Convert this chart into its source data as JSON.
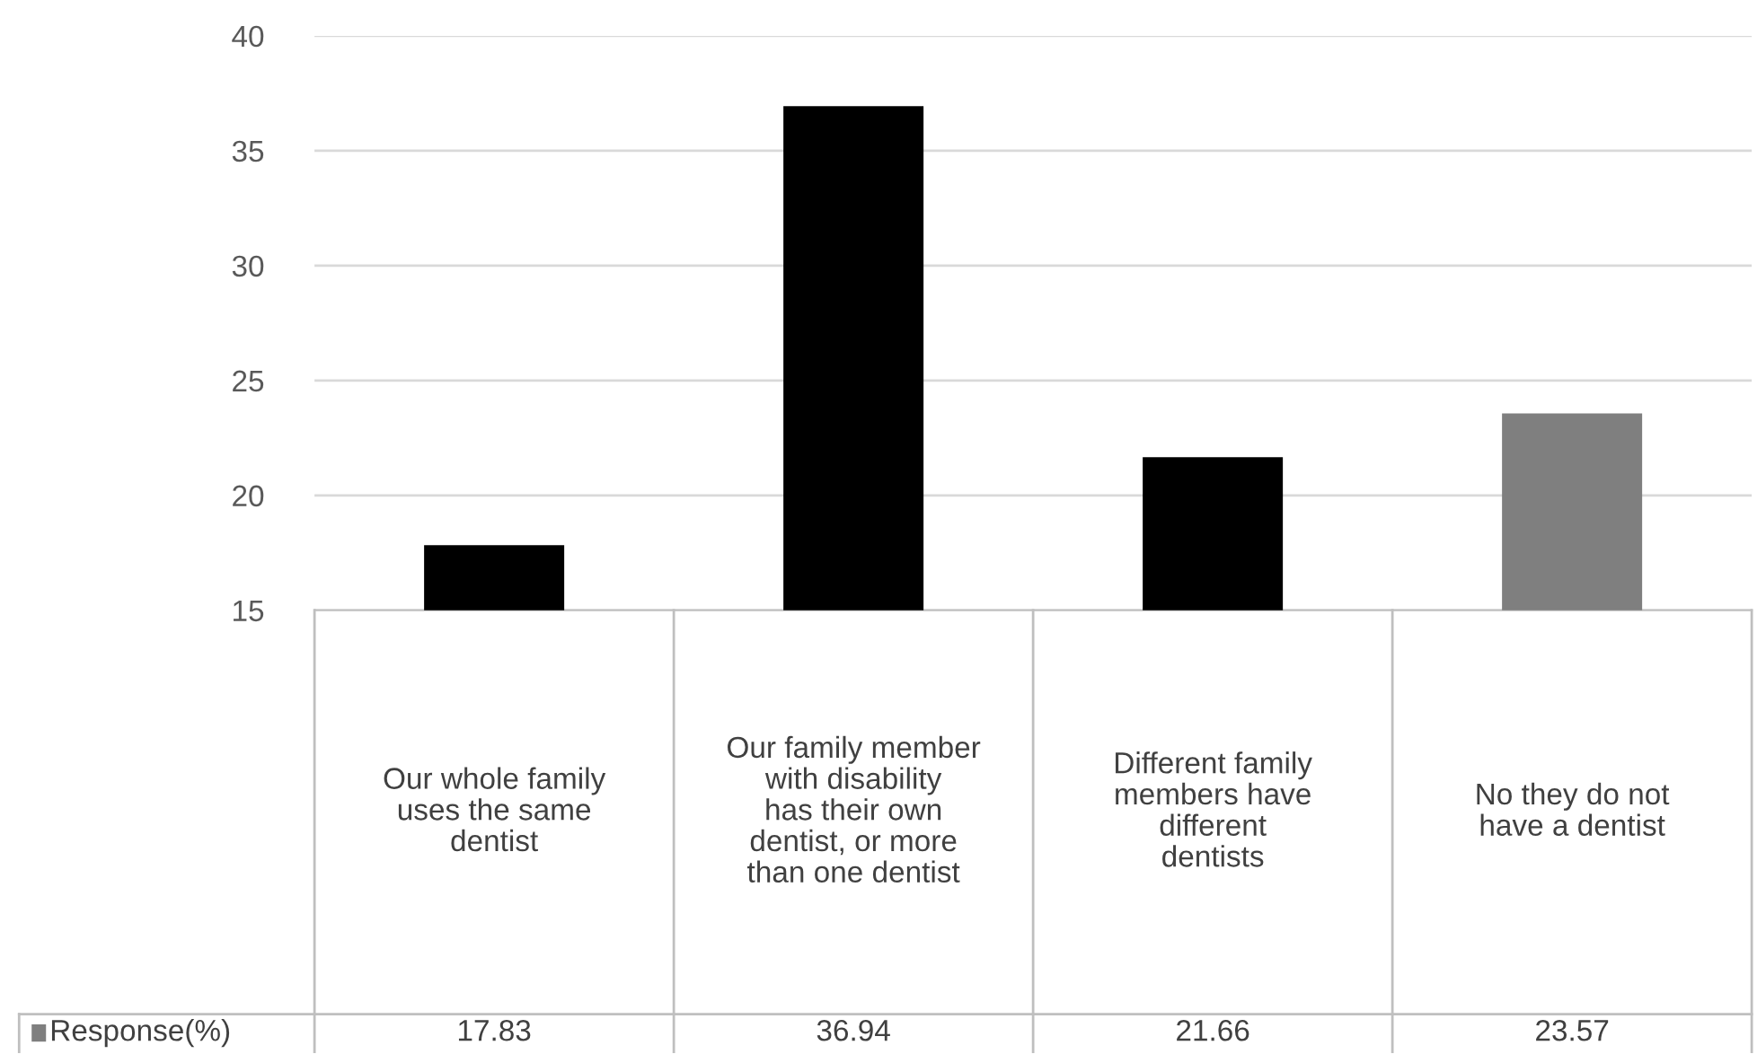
{
  "chart_data": {
    "type": "bar",
    "categories": [
      "Our whole family uses the same dentist",
      "Our family member with disability has their own dentist, or more than one dentist",
      "Different family members have different dentists",
      "No they do not have a dentist"
    ],
    "series": [
      {
        "name": "Response(%)",
        "colors": [
          "#000000",
          "#000000",
          "#000000",
          "#7f7f7f"
        ],
        "values": [
          17.83,
          36.94,
          21.66,
          23.57
        ]
      }
    ],
    "ylim": [
      15,
      40
    ],
    "yticks": [
      15,
      20,
      25,
      30,
      35,
      40
    ],
    "grid": "y",
    "data_labels": true
  }
}
